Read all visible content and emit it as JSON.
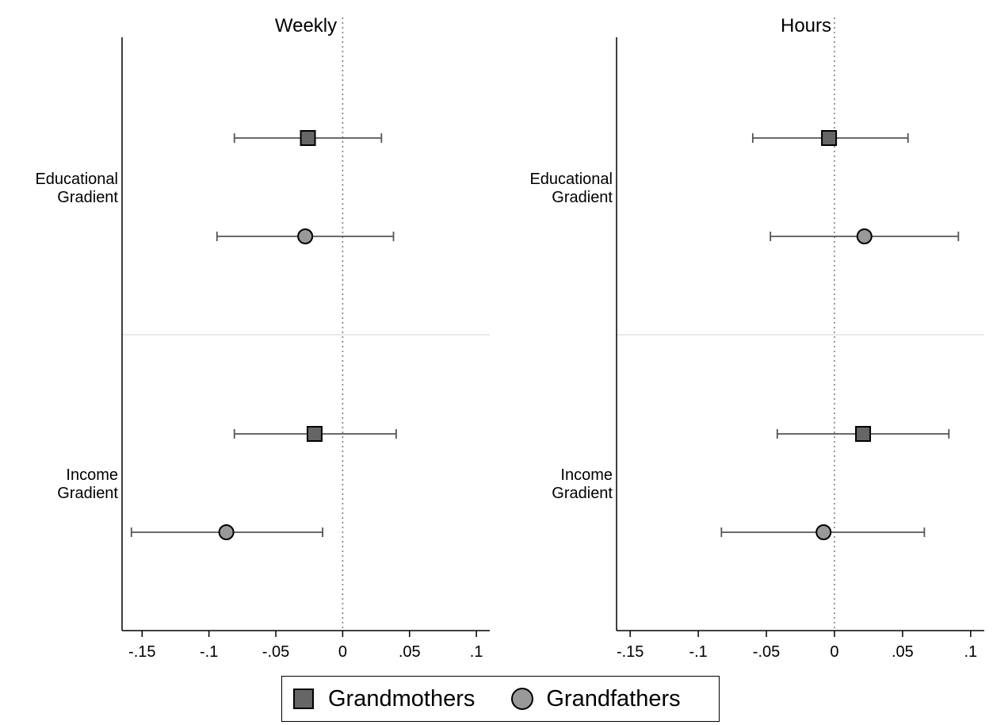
{
  "chart_data": [
    {
      "type": "scatter",
      "subtype": "coefficient-plot",
      "title": "Weekly",
      "xlim": [
        -0.165,
        0.11
      ],
      "xticks": [
        -0.15,
        -0.1,
        -0.05,
        0,
        0.05,
        0.1
      ],
      "xtick_labels": [
        "-.15",
        "-.1",
        "-.05",
        "0",
        ".05",
        ".1"
      ],
      "reference_line_x": 0,
      "categories": [
        {
          "line1": "Educational",
          "line2": "Gradient"
        },
        {
          "line1": "Income",
          "line2": "Gradient"
        }
      ],
      "series": [
        {
          "name": "Grandmothers",
          "marker": "square",
          "color": "#666666",
          "points": [
            {
              "category": 0,
              "estimate": -0.026,
              "ci_low": -0.081,
              "ci_high": 0.029
            },
            {
              "category": 1,
              "estimate": -0.021,
              "ci_low": -0.081,
              "ci_high": 0.04
            }
          ]
        },
        {
          "name": "Grandfathers",
          "marker": "circle",
          "color": "#999999",
          "points": [
            {
              "category": 0,
              "estimate": -0.028,
              "ci_low": -0.094,
              "ci_high": 0.038
            },
            {
              "category": 1,
              "estimate": -0.087,
              "ci_low": -0.158,
              "ci_high": -0.015
            }
          ]
        }
      ]
    },
    {
      "type": "scatter",
      "subtype": "coefficient-plot",
      "title": "Hours",
      "xlim": [
        -0.16,
        0.11
      ],
      "xticks": [
        -0.15,
        -0.1,
        -0.05,
        0,
        0.05,
        0.1
      ],
      "xtick_labels": [
        "-.15",
        "-.1",
        "-.05",
        "0",
        ".05",
        ".1"
      ],
      "reference_line_x": 0,
      "categories": [
        {
          "line1": "Educational",
          "line2": "Gradient"
        },
        {
          "line1": "Income",
          "line2": "Gradient"
        }
      ],
      "series": [
        {
          "name": "Grandmothers",
          "marker": "square",
          "color": "#666666",
          "points": [
            {
              "category": 0,
              "estimate": -0.004,
              "ci_low": -0.06,
              "ci_high": 0.054
            },
            {
              "category": 1,
              "estimate": 0.021,
              "ci_low": -0.042,
              "ci_high": 0.084
            }
          ]
        },
        {
          "name": "Grandfathers",
          "marker": "circle",
          "color": "#999999",
          "points": [
            {
              "category": 0,
              "estimate": 0.022,
              "ci_low": -0.047,
              "ci_high": 0.091
            },
            {
              "category": 1,
              "estimate": -0.008,
              "ci_low": -0.083,
              "ci_high": 0.066
            }
          ]
        }
      ]
    }
  ],
  "legend": {
    "position": "bottom-center",
    "items": [
      {
        "label": "Grandmothers",
        "marker": "square",
        "color": "#666666"
      },
      {
        "label": "Grandfathers",
        "marker": "circle",
        "color": "#999999"
      }
    ]
  }
}
